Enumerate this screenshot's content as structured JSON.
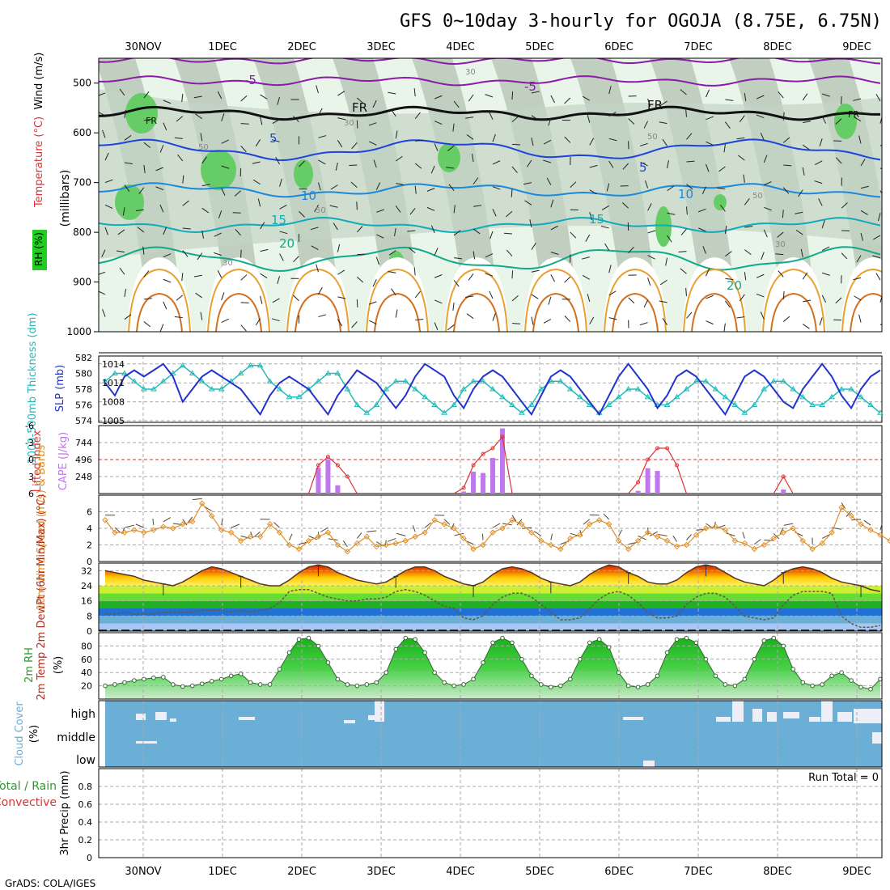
{
  "header": {
    "title": "GFS 0~10day 3-hourly for OGOJA (8.75E, 6.75N)",
    "credit": "GrADS: COLA/IGES"
  },
  "dates": [
    "30NOV",
    "1DEC",
    "2DEC",
    "3DEC",
    "4DEC",
    "5DEC",
    "6DEC",
    "7DEC",
    "8DEC",
    "9DEC"
  ],
  "colors": {
    "slp": "#2233cc",
    "thick": "#22bbbb",
    "li": "#dd3333",
    "cape": "#c077ee",
    "wind": "#e0902a",
    "rh": "#2a9a2a",
    "cloud": "#6baed6",
    "precip_label": "#2a9a2a",
    "conv_label": "#dd3333"
  },
  "chart_data": [
    {
      "type": "contour",
      "name": "upper-air",
      "ylabel": "(millibars)",
      "labels": {
        "wind": "Wind (m/s)",
        "temp": "Temperature (°C)",
        "rh": "RH (%)"
      },
      "yticks": [
        500,
        600,
        700,
        800,
        900,
        1000
      ],
      "ylim": [
        450,
        1000
      ],
      "isotherm_labels": [
        "-5",
        "FR",
        "5",
        "10",
        "15",
        "20"
      ],
      "rh_labels": [
        "30",
        "50",
        "70",
        "90"
      ]
    },
    {
      "type": "line",
      "name": "slp-thickness",
      "ylabel_left": "1000-500mb Thickness (dm)",
      "ylabel_right": "SLP (mb)",
      "yticks_left": [
        574,
        576,
        578,
        580,
        582
      ],
      "yticks_right": [
        1005,
        1008,
        1011,
        1014
      ],
      "ylim_left": [
        574,
        582
      ],
      "ylim_right": [
        1005,
        1015
      ],
      "series": [
        {
          "name": "SLP",
          "values": [
            1011,
            1009,
            1012,
            1013,
            1012,
            1013,
            1014,
            1012,
            1008,
            1010,
            1012,
            1013,
            1012,
            1011,
            1010,
            1008,
            1006,
            1009,
            1011,
            1012,
            1011,
            1010,
            1008,
            1006,
            1009,
            1011,
            1013,
            1012,
            1011,
            1009,
            1007,
            1009,
            1012,
            1014,
            1013,
            1012,
            1009,
            1007,
            1010,
            1012,
            1013,
            1012,
            1010,
            1008,
            1006,
            1009,
            1012,
            1013,
            1012,
            1010,
            1008,
            1006,
            1009,
            1012,
            1014,
            1012,
            1010,
            1007,
            1009,
            1012,
            1013,
            1012,
            1010,
            1008,
            1006,
            1009,
            1012,
            1013,
            1012,
            1010,
            1008,
            1007,
            1010,
            1012,
            1014,
            1012,
            1009,
            1007,
            1010,
            1012,
            1013
          ]
        },
        {
          "name": "Thickness",
          "values": [
            579,
            580,
            580,
            579,
            578,
            578,
            579,
            580,
            581,
            580,
            579,
            578,
            578,
            579,
            580,
            581,
            581,
            579,
            578,
            577,
            577,
            578,
            579,
            580,
            580,
            578,
            576,
            575,
            576,
            578,
            579,
            579,
            578,
            577,
            576,
            575,
            576,
            578,
            579,
            579,
            578,
            577,
            576,
            575,
            576,
            578,
            579,
            579,
            578,
            577,
            576,
            575,
            576,
            577,
            578,
            578,
            577,
            576,
            576,
            577,
            578,
            579,
            579,
            578,
            577,
            576,
            575,
            576,
            578,
            579,
            579,
            578,
            577,
            576,
            576,
            577,
            578,
            578,
            577,
            576,
            575
          ]
        }
      ]
    },
    {
      "type": "bar",
      "name": "li-cape",
      "ylabel_left": "Lifted Index",
      "ylabel_right": "CAPE (J/kg)",
      "yticks_left": [
        -6,
        -3,
        0,
        3,
        6
      ],
      "yticks_right": [
        248,
        496,
        744
      ],
      "ylim_left": [
        6,
        -6
      ],
      "ylim_right": [
        0,
        992
      ],
      "cape": [
        0,
        0,
        0,
        0,
        0,
        0,
        0,
        0,
        0,
        0,
        0,
        0,
        0,
        0,
        0,
        0,
        0,
        0,
        0,
        0,
        0,
        0,
        380,
        500,
        120,
        0,
        0,
        0,
        0,
        0,
        0,
        0,
        0,
        0,
        0,
        0,
        0,
        30,
        320,
        300,
        520,
        950,
        0,
        0,
        0,
        0,
        0,
        0,
        0,
        0,
        0,
        0,
        0,
        0,
        0,
        40,
        370,
        330,
        0,
        0,
        0,
        0,
        0,
        0,
        0,
        0,
        0,
        0,
        0,
        0,
        60,
        0,
        0,
        0,
        0,
        0,
        0,
        0,
        0,
        0,
        0
      ],
      "lifted_index": [
        6,
        6,
        6,
        6,
        6,
        6,
        6,
        6,
        6,
        6,
        6,
        6,
        6,
        6,
        6,
        6,
        6,
        6,
        6,
        6,
        6,
        6,
        1,
        -0.5,
        1,
        3,
        6,
        6,
        6,
        6,
        6,
        6,
        6,
        6,
        6,
        6,
        6,
        5,
        1,
        -1,
        -2,
        -4,
        6,
        6,
        6,
        6,
        6,
        6,
        6,
        6,
        6,
        6,
        6,
        6,
        6,
        4,
        0,
        -2,
        -2,
        1,
        6,
        6,
        6,
        6,
        6,
        6,
        6,
        6,
        6,
        6,
        3,
        6,
        6,
        6,
        6,
        6,
        6,
        6,
        6,
        6,
        6
      ]
    },
    {
      "type": "line",
      "name": "wind10m",
      "ylabel": "10m Wind Speed (m/s) & Barbs",
      "yticks": [
        0,
        2,
        4,
        6
      ],
      "ylim": [
        0,
        8
      ],
      "values": [
        5,
        3.5,
        3.5,
        3.8,
        3.5,
        3.8,
        4.2,
        4,
        4.5,
        4.8,
        7,
        5.5,
        3.8,
        3.5,
        2.5,
        3,
        3,
        4.5,
        3.5,
        2,
        1.5,
        2.5,
        3,
        3.5,
        2,
        1.2,
        2.2,
        3,
        1.8,
        2,
        2.2,
        2.5,
        3,
        3.5,
        5,
        4.5,
        4,
        2.8,
        1.5,
        2,
        3.5,
        4,
        5,
        4.5,
        3.5,
        2.5,
        2,
        1.5,
        2.8,
        3.2,
        4.5,
        5,
        4.5,
        2.5,
        1.5,
        2.5,
        3.5,
        3,
        2.5,
        1.8,
        2,
        3.2,
        4,
        4.2,
        3.8,
        2.5,
        2.2,
        1.5,
        2,
        2.8,
        3.5,
        4,
        2.5,
        1.5,
        2.2,
        3.5,
        6.5,
        5.5,
        4.5,
        3.8,
        3.2,
        2.5
      ]
    },
    {
      "type": "area",
      "name": "temp2m",
      "ylabel": "2m Temp 2m DewPt (6hr Min/Max) (°C)",
      "yticks": [
        0,
        8,
        16,
        24,
        32
      ],
      "ylim": [
        0,
        36
      ],
      "temp": [
        32,
        31,
        30,
        29,
        27,
        26,
        25,
        24,
        26,
        29,
        32,
        34,
        33,
        31,
        29,
        27,
        25,
        24,
        24,
        27,
        31,
        34,
        35,
        34,
        31,
        29,
        27,
        26,
        25,
        26,
        29,
        32,
        34,
        34,
        32,
        29,
        27,
        25,
        24,
        26,
        30,
        33,
        34,
        33,
        31,
        28,
        26,
        25,
        24,
        26,
        30,
        33,
        35,
        34,
        31,
        29,
        26,
        25,
        25,
        27,
        31,
        34,
        35,
        34,
        31,
        28,
        26,
        25,
        24,
        27,
        31,
        33,
        34,
        33,
        31,
        28,
        26,
        25,
        24,
        22,
        21
      ],
      "dewpoint": [
        9,
        9,
        10,
        9,
        9,
        9,
        10,
        10,
        10,
        10,
        11,
        11,
        11,
        10,
        11,
        10,
        11,
        12,
        15,
        21,
        22,
        22,
        20,
        18,
        17,
        16,
        16,
        17,
        17,
        18,
        21,
        22,
        21,
        19,
        16,
        13,
        12,
        7,
        6,
        8,
        14,
        18,
        20,
        20,
        18,
        14,
        10,
        6,
        6,
        7,
        12,
        17,
        20,
        21,
        19,
        15,
        10,
        7,
        7,
        8,
        14,
        18,
        20,
        20,
        18,
        13,
        8,
        7,
        6,
        7,
        14,
        19,
        21,
        21,
        21,
        20,
        8,
        4,
        2,
        2,
        3
      ]
    },
    {
      "type": "area",
      "name": "rh2m",
      "ylabel": "2m RH (%)",
      "yticks": [
        20,
        40,
        60,
        80
      ],
      "ylim": [
        0,
        100
      ],
      "values": [
        20,
        22,
        25,
        28,
        30,
        32,
        33,
        22,
        19,
        20,
        23,
        27,
        30,
        35,
        38,
        25,
        22,
        22,
        45,
        70,
        90,
        92,
        80,
        55,
        30,
        22,
        20,
        22,
        25,
        40,
        75,
        92,
        90,
        70,
        40,
        25,
        20,
        22,
        30,
        55,
        85,
        92,
        85,
        60,
        35,
        22,
        18,
        20,
        30,
        60,
        85,
        90,
        78,
        40,
        20,
        18,
        22,
        35,
        70,
        90,
        92,
        85,
        60,
        35,
        22,
        20,
        30,
        60,
        88,
        92,
        80,
        45,
        25,
        20,
        22,
        35,
        40,
        28,
        18,
        15,
        30
      ]
    },
    {
      "type": "heatmap",
      "name": "cloud",
      "ylabel": "Cloud Cover (%)",
      "layers": [
        "high",
        "middle",
        "low"
      ]
    },
    {
      "type": "bar",
      "name": "precip",
      "ylabel": "3hr Precip (mm)",
      "left_label": "Total / Rain",
      "left_label2": "Convective",
      "yticks": [
        "0",
        "0.2",
        "0.4",
        "0.6",
        "0.8"
      ],
      "ylim": [
        0,
        1
      ],
      "run_total": "Run Total = 0",
      "values": []
    }
  ]
}
